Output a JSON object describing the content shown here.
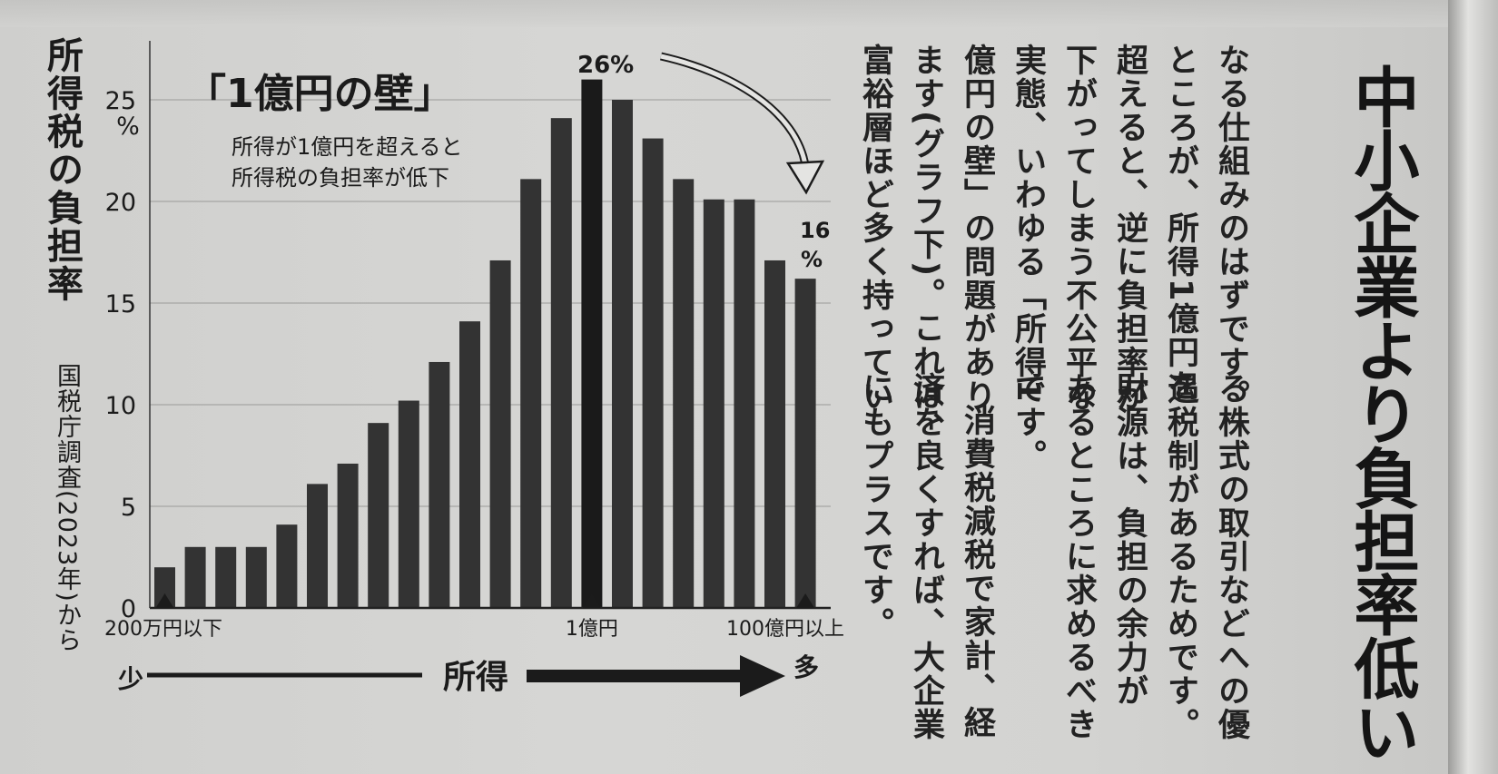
{
  "headline": "中小企業より負担率低い",
  "article": {
    "col1": "なる仕組みのはずです。",
    "col2": "ところが、所得1億円を",
    "col3": "超えると、逆に負担率が",
    "col4": "下がってしまう不公平な",
    "col5": "実態、いわゆる「所得1",
    "col6": "億円の壁」の問題があり",
    "col7": "ます(グラフ下)。これは、",
    "col8": "富裕層ほど多く持ってい",
    "col9": "る株式の取引などへの優",
    "col10": "遇税制があるためです。",
    "col11": "財源は、負担の余力が",
    "col12": "あるところに求めるべき",
    "col13": "です。",
    "col14": "消費税減税で家計、経",
    "col15": "済を良くすれば、大企業",
    "col16": "にもプラスです。"
  },
  "chart_data": {
    "type": "bar",
    "title": "「1億円の壁」",
    "subtitle": [
      "所得が1億円を超えると",
      "所得税の負担率が低下"
    ],
    "ylabel": "所得税の負担率",
    "source": "国税庁調査(2023年)から",
    "y_unit": "%",
    "y_ticks": [
      0,
      5,
      10,
      15,
      20,
      25
    ],
    "ylim": [
      0,
      27
    ],
    "values": [
      2,
      3,
      3,
      3,
      4.1,
      6.1,
      7.1,
      9.1,
      10.2,
      12.1,
      14.1,
      17.1,
      21.1,
      24.1,
      26,
      25,
      23.1,
      21.1,
      20.1,
      20.1,
      17.1,
      16.2
    ],
    "markers": [
      {
        "index": 0,
        "label": "200万円以下"
      },
      {
        "index": 14,
        "label": "1億円"
      },
      {
        "index": 21,
        "label": "100億円以上"
      }
    ],
    "peak_label": "26%",
    "end_label": [
      "16",
      "%"
    ],
    "xlabel": "所得",
    "x_low": "少",
    "x_high": "多",
    "bar_color": "#333333",
    "highlight_color": "#1a1a1a",
    "grid": true
  }
}
